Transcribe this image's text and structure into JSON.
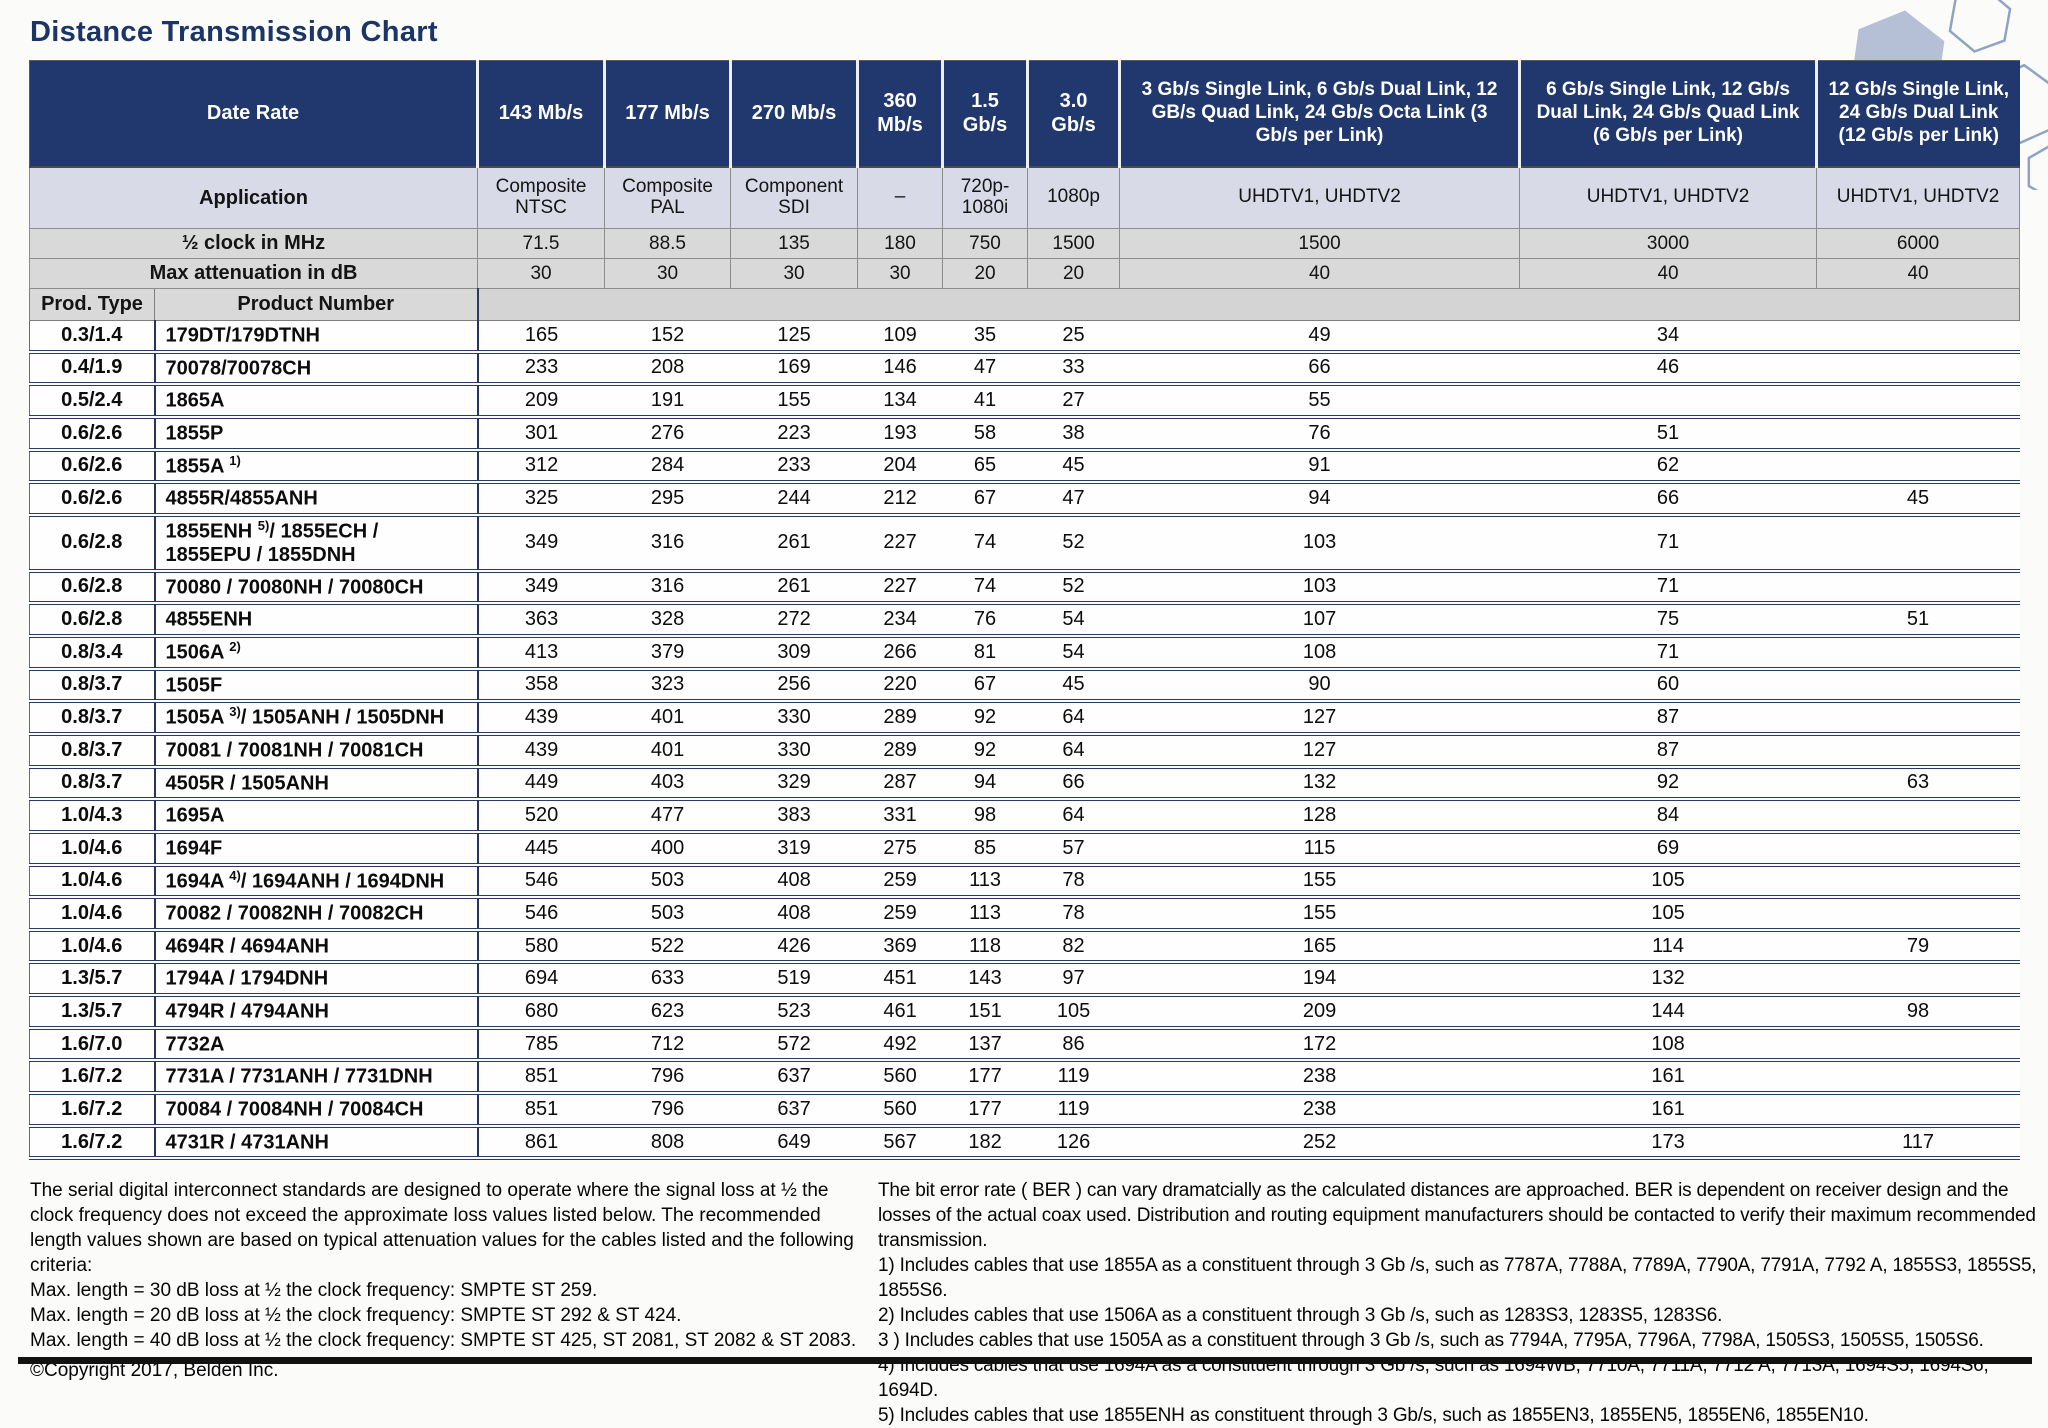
{
  "title": "Distance Transmission Chart",
  "colors": {
    "header_navy": "#21386e",
    "application_row": "#d8dae7",
    "metric_row_gray": "#d8d9d8",
    "row_separator_navy": "#2b3a63",
    "hexagon_fill": "#b5bfd5",
    "hexagon_stroke": "#8fa3c4"
  },
  "table": {
    "header": {
      "date_rate_label": "Date Rate",
      "application_label": "Application",
      "clock_label": "½ clock in MHz",
      "attenuation_label": "Max attenuation in dB",
      "prod_type_label": "Prod. Type",
      "product_number_label": "Product Number",
      "rate_columns": [
        "143 Mb/s",
        "177 Mb/s",
        "270 Mb/s",
        "360 Mb/s",
        "1.5 Gb/s",
        "3.0 Gb/s",
        "3 Gb/s Single Link, 6 Gb/s Dual Link, 12 GB/s Quad Link, 24 Gb/s Octa Link (3 Gb/s per Link)",
        "6 Gb/s Single Link, 12 Gb/s Dual Link, 24 Gb/s Quad Link (6 Gb/s per Link)",
        "12 Gb/s Single Link, 24 Gb/s Dual Link (12 Gb/s per Link)"
      ],
      "applications": [
        "Composite NTSC",
        "Composite PAL",
        "Component SDI",
        "–",
        "720p- 1080i",
        "1080p",
        "UHDTV1, UHDTV2",
        "UHDTV1, UHDTV2",
        "UHDTV1, UHDTV2"
      ],
      "clock_mhz": [
        "71.5",
        "88.5",
        "135",
        "180",
        "750",
        "1500",
        "1500",
        "3000",
        "6000"
      ],
      "attenuation_db": [
        "30",
        "30",
        "30",
        "30",
        "20",
        "20",
        "40",
        "40",
        "40"
      ]
    },
    "rows": [
      {
        "prod_type": "0.3/1.4",
        "product": "179DT/179DTNH",
        "sup": "",
        "product_rest": "",
        "product_line2": "",
        "values": [
          "165",
          "152",
          "125",
          "109",
          "35",
          "25",
          "49",
          "34",
          ""
        ]
      },
      {
        "prod_type": "0.4/1.9",
        "product": "70078/70078CH",
        "sup": "",
        "product_rest": "",
        "product_line2": "",
        "values": [
          "233",
          "208",
          "169",
          "146",
          "47",
          "33",
          "66",
          "46",
          ""
        ]
      },
      {
        "prod_type": "0.5/2.4",
        "product": "1865A",
        "sup": "",
        "product_rest": "",
        "product_line2": "",
        "values": [
          "209",
          "191",
          "155",
          "134",
          "41",
          "27",
          "55",
          "",
          ""
        ]
      },
      {
        "prod_type": "0.6/2.6",
        "product": "1855P",
        "sup": "",
        "product_rest": "",
        "product_line2": "",
        "values": [
          "301",
          "276",
          "223",
          "193",
          "58",
          "38",
          "76",
          "51",
          ""
        ]
      },
      {
        "prod_type": "0.6/2.6",
        "product": "1855A ",
        "sup": "1)",
        "product_rest": "",
        "product_line2": "",
        "values": [
          "312",
          "284",
          "233",
          "204",
          "65",
          "45",
          "91",
          "62",
          ""
        ]
      },
      {
        "prod_type": "0.6/2.6",
        "product": "4855R/4855ANH",
        "sup": "",
        "product_rest": "",
        "product_line2": "",
        "values": [
          "325",
          "295",
          "244",
          "212",
          "67",
          "47",
          "94",
          "66",
          "45"
        ]
      },
      {
        "prod_type": "0.6/2.8",
        "product": "1855ENH ",
        "sup": "5)",
        "product_rest": "/ 1855ECH /",
        "product_line2": "1855EPU / 1855DNH",
        "values": [
          "349",
          "316",
          "261",
          "227",
          "74",
          "52",
          "103",
          "71",
          ""
        ]
      },
      {
        "prod_type": "0.6/2.8",
        "product": "70080 / 70080NH / 70080CH",
        "sup": "",
        "product_rest": "",
        "product_line2": "",
        "values": [
          "349",
          "316",
          "261",
          "227",
          "74",
          "52",
          "103",
          "71",
          ""
        ]
      },
      {
        "prod_type": "0.6/2.8",
        "product": "4855ENH",
        "sup": "",
        "product_rest": "",
        "product_line2": "",
        "values": [
          "363",
          "328",
          "272",
          "234",
          "76",
          "54",
          "107",
          "75",
          "51"
        ]
      },
      {
        "prod_type": "0.8/3.4",
        "product": "1506A ",
        "sup": "2)",
        "product_rest": "",
        "product_line2": "",
        "values": [
          "413",
          "379",
          "309",
          "266",
          "81",
          "54",
          "108",
          "71",
          ""
        ]
      },
      {
        "prod_type": "0.8/3.7",
        "product": "1505F",
        "sup": "",
        "product_rest": "",
        "product_line2": "",
        "values": [
          "358",
          "323",
          "256",
          "220",
          "67",
          "45",
          "90",
          "60",
          ""
        ]
      },
      {
        "prod_type": "0.8/3.7",
        "product": "1505A ",
        "sup": "3)",
        "product_rest": "/ 1505ANH / 1505DNH",
        "product_line2": "",
        "values": [
          "439",
          "401",
          "330",
          "289",
          "92",
          "64",
          "127",
          "87",
          ""
        ]
      },
      {
        "prod_type": "0.8/3.7",
        "product": "70081 / 70081NH / 70081CH",
        "sup": "",
        "product_rest": "",
        "product_line2": "",
        "values": [
          "439",
          "401",
          "330",
          "289",
          "92",
          "64",
          "127",
          "87",
          ""
        ]
      },
      {
        "prod_type": "0.8/3.7",
        "product": "4505R / 1505ANH",
        "sup": "",
        "product_rest": "",
        "product_line2": "",
        "values": [
          "449",
          "403",
          "329",
          "287",
          "94",
          "66",
          "132",
          "92",
          "63"
        ]
      },
      {
        "prod_type": "1.0/4.3",
        "product": "1695A",
        "sup": "",
        "product_rest": "",
        "product_line2": "",
        "values": [
          "520",
          "477",
          "383",
          "331",
          "98",
          "64",
          "128",
          "84",
          ""
        ]
      },
      {
        "prod_type": "1.0/4.6",
        "product": "1694F",
        "sup": "",
        "product_rest": "",
        "product_line2": "",
        "values": [
          "445",
          "400",
          "319",
          "275",
          "85",
          "57",
          "115",
          "69",
          ""
        ]
      },
      {
        "prod_type": "1.0/4.6",
        "product": "1694A ",
        "sup": "4)",
        "product_rest": "/ 1694ANH / 1694DNH",
        "product_line2": "",
        "values": [
          "546",
          "503",
          "408",
          "259",
          "113",
          "78",
          "155",
          "105",
          ""
        ]
      },
      {
        "prod_type": "1.0/4.6",
        "product": "70082 / 70082NH / 70082CH",
        "sup": "",
        "product_rest": "",
        "product_line2": "",
        "values": [
          "546",
          "503",
          "408",
          "259",
          "113",
          "78",
          "155",
          "105",
          ""
        ]
      },
      {
        "prod_type": "1.0/4.6",
        "product": "4694R / 4694ANH",
        "sup": "",
        "product_rest": "",
        "product_line2": "",
        "values": [
          "580",
          "522",
          "426",
          "369",
          "118",
          "82",
          "165",
          "114",
          "79"
        ]
      },
      {
        "prod_type": "1.3/5.7",
        "product": "1794A / 1794DNH",
        "sup": "",
        "product_rest": "",
        "product_line2": "",
        "values": [
          "694",
          "633",
          "519",
          "451",
          "143",
          "97",
          "194",
          "132",
          ""
        ]
      },
      {
        "prod_type": "1.3/5.7",
        "product": "4794R / 4794ANH",
        "sup": "",
        "product_rest": "",
        "product_line2": "",
        "values": [
          "680",
          "623",
          "523",
          "461",
          "151",
          "105",
          "209",
          "144",
          "98"
        ]
      },
      {
        "prod_type": "1.6/7.0",
        "product": "7732A",
        "sup": "",
        "product_rest": "",
        "product_line2": "",
        "values": [
          "785",
          "712",
          "572",
          "492",
          "137",
          "86",
          "172",
          "108",
          ""
        ]
      },
      {
        "prod_type": "1.6/7.2",
        "product": "7731A / 7731ANH / 7731DNH",
        "sup": "",
        "product_rest": "",
        "product_line2": "",
        "values": [
          "851",
          "796",
          "637",
          "560",
          "177",
          "119",
          "238",
          "161",
          ""
        ]
      },
      {
        "prod_type": "1.6/7.2",
        "product": "70084 / 70084NH / 70084CH",
        "sup": "",
        "product_rest": "",
        "product_line2": "",
        "values": [
          "851",
          "796",
          "637",
          "560",
          "177",
          "119",
          "238",
          "161",
          ""
        ]
      },
      {
        "prod_type": "1.6/7.2",
        "product": "4731R / 4731ANH",
        "sup": "",
        "product_rest": "",
        "product_line2": "",
        "values": [
          "861",
          "808",
          "649",
          "567",
          "182",
          "126",
          "252",
          "173",
          "117"
        ]
      }
    ]
  },
  "footer": {
    "left": {
      "intro": "The serial digital interconnect standards are designed to operate where the signal loss at ½ the clock frequency does not exceed the approximate loss values listed below. The recommended length values shown are based on typical attenuation values for the cables listed and the following criteria:",
      "criteria": [
        "Max. length = 30 dB loss at ½ the clock frequency: SMPTE ST 259.",
        "Max. length = 20 dB loss at ½ the clock frequency: SMPTE ST 292 & ST 424.",
        "Max. length = 40 dB loss at ½ the clock frequency: SMPTE ST 425, ST 2081, ST 2082 & ST 2083."
      ],
      "copyright": "©Copyright 2017, Belden Inc."
    },
    "right": {
      "intro": "The bit error rate ( BER ) can vary dramatcially as the calculated distances are approached. BER is dependent on receiver design and the losses of the actual coax used. Distribution and routing equipment manufacturers should be contacted to verify their maximum recommended transmission.",
      "notes": [
        "1) Includes cables that use 1855A as a constituent through 3 Gb /s, such as 7787A, 7788A, 7789A, 7790A, 7791A, 7792 A, 1855S3, 1855S5, 1855S6.",
        "2) Includes cables that use 1506A as a constituent through 3 Gb /s, such as 1283S3, 1283S5, 1283S6.",
        "3 ) Includes cables that use 1505A as a constituent through 3 Gb /s, such as 7794A, 7795A, 7796A, 7798A, 1505S3, 1505S5, 1505S6.",
        "4) Includes cables that use 1694A as a constituent through 3 Gb /s, such as 1694WB, 7710A, 7711A, 7712 A, 7713A, 1694S5, 1694S6, 1694D.",
        "5) Includes cables that use 1855ENH as constituent through 3 Gb/s, such as 1855EN3, 1855EN5, 1855EN6, 1855EN10."
      ]
    }
  }
}
